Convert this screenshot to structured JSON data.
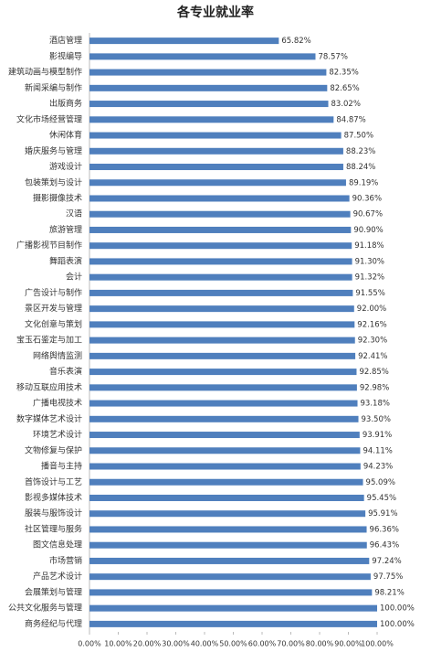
{
  "chart_data": {
    "type": "barh",
    "title": "各专业就业率",
    "categories": [
      "酒店管理",
      "影视编导",
      "建筑动画与模型制作",
      "新闻采编与制作",
      "出版商务",
      "文化市场经营管理",
      "休闲体育",
      "婚庆服务与管理",
      "游戏设计",
      "包装策划与设计",
      "摄影摄像技术",
      "汉语",
      "旅游管理",
      "广播影视节目制作",
      "舞蹈表演",
      "会计",
      "广告设计与制作",
      "景区开发与管理",
      "文化创意与策划",
      "宝玉石鉴定与加工",
      "网络舆情监测",
      "音乐表演",
      "移动互联应用技术",
      "广播电视技术",
      "数字媒体艺术设计",
      "环境艺术设计",
      "文物修复与保护",
      "播音与主持",
      "首饰设计与工艺",
      "影视多媒体技术",
      "服装与服饰设计",
      "社区管理与服务",
      "图文信息处理",
      "市场营销",
      "产品艺术设计",
      "会展策划与管理",
      "公共文化服务与管理",
      "商务经纪与代理"
    ],
    "values": [
      65.82,
      78.57,
      82.35,
      82.65,
      83.02,
      84.87,
      87.5,
      88.23,
      88.24,
      89.19,
      90.36,
      90.67,
      90.9,
      91.18,
      91.3,
      91.32,
      91.55,
      92.0,
      92.16,
      92.3,
      92.41,
      92.85,
      92.98,
      93.18,
      93.5,
      93.91,
      94.11,
      94.23,
      95.09,
      95.45,
      95.91,
      96.36,
      96.43,
      97.24,
      97.75,
      98.21,
      100.0,
      100.0
    ],
    "value_labels": [
      "65.82%",
      "78.57%",
      "82.35%",
      "82.65%",
      "83.02%",
      "84.87%",
      "87.50%",
      "88.23%",
      "88.24%",
      "89.19%",
      "90.36%",
      "90.67%",
      "90.90%",
      "91.18%",
      "91.30%",
      "91.32%",
      "91.55%",
      "92.00%",
      "92.16%",
      "92.30%",
      "92.41%",
      "92.85%",
      "92.98%",
      "93.18%",
      "93.50%",
      "93.91%",
      "94.11%",
      "94.23%",
      "95.09%",
      "95.45%",
      "95.91%",
      "96.36%",
      "96.43%",
      "97.24%",
      "97.75%",
      "98.21%",
      "100.00%",
      "100.00%"
    ],
    "color": "#4f7fbd",
    "xlim": [
      0,
      100
    ],
    "xticks": [
      {
        "value": 0,
        "label": "0.00%"
      },
      {
        "value": 10,
        "label": "10.00%"
      },
      {
        "value": 20,
        "label": "20.00%"
      },
      {
        "value": 30,
        "label": "30.00%"
      },
      {
        "value": 40,
        "label": "40.00%"
      },
      {
        "value": 50,
        "label": "50.00%"
      },
      {
        "value": 60,
        "label": "60.00%"
      },
      {
        "value": 70,
        "label": "70.00%"
      },
      {
        "value": 80,
        "label": "80.00%"
      },
      {
        "value": 90,
        "label": "90.00%"
      },
      {
        "value": 100,
        "label": "100.00%"
      }
    ]
  }
}
